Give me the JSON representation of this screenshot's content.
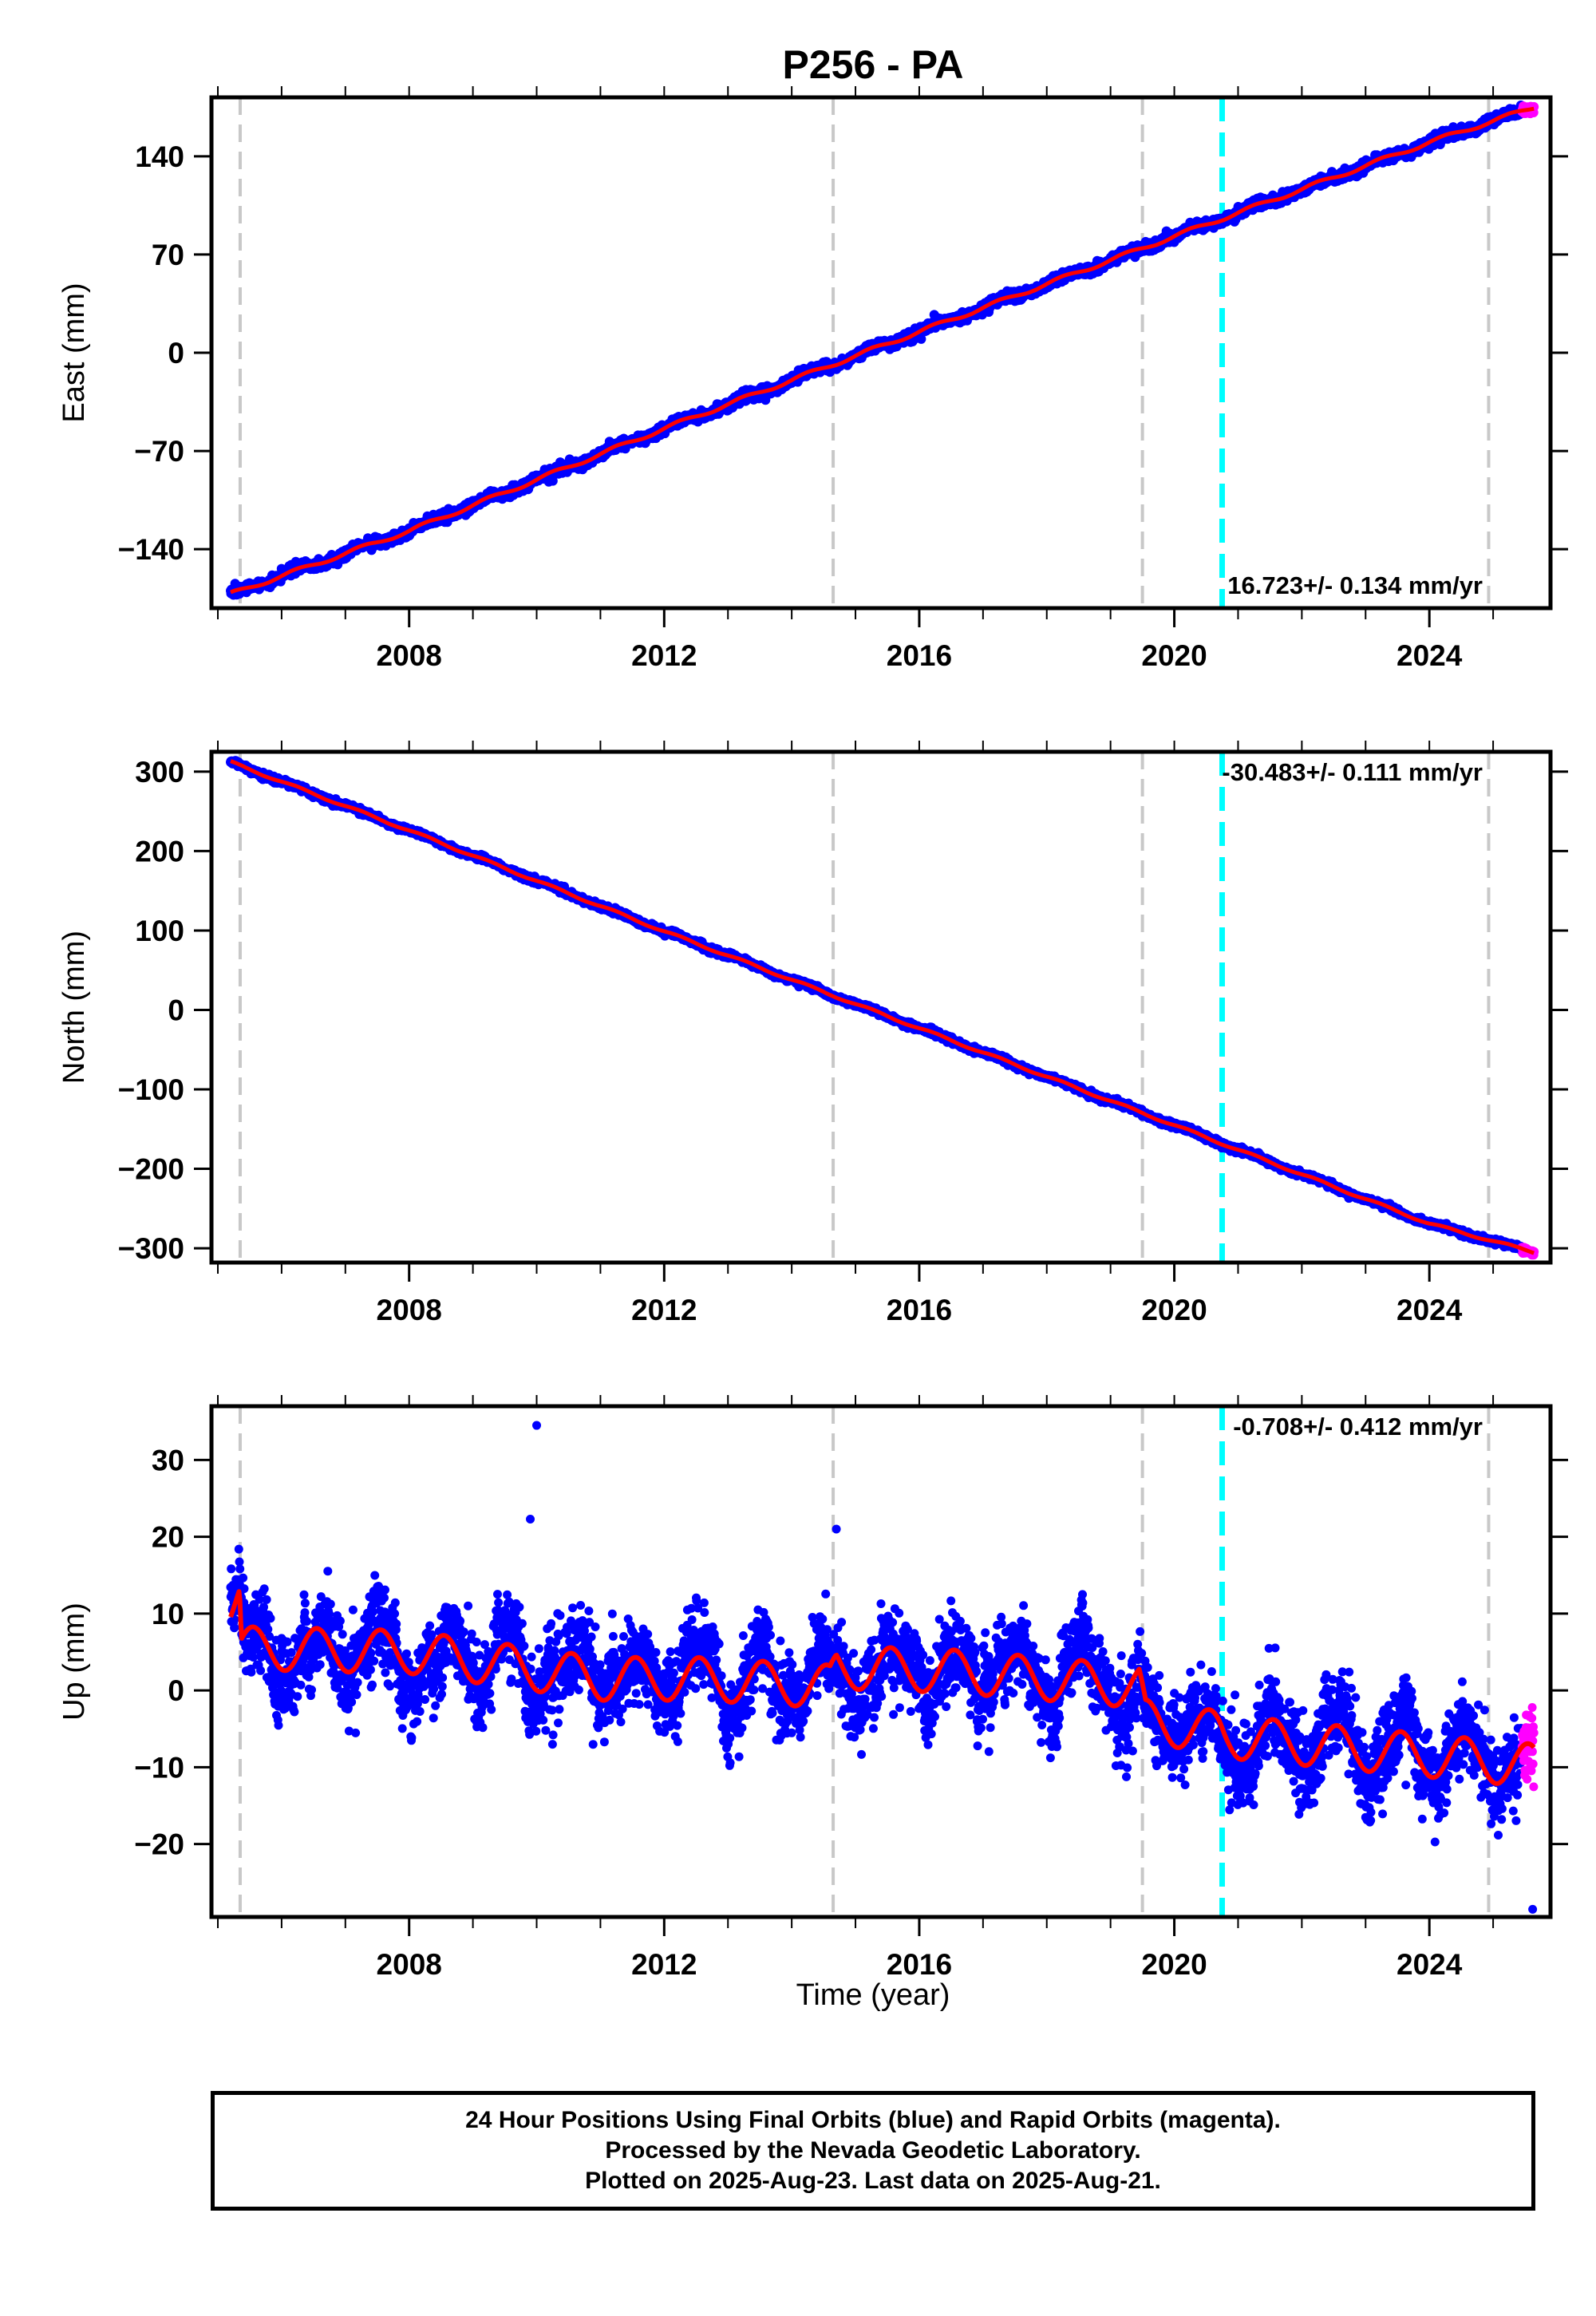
{
  "title": "P256 - PA",
  "x_axis_label": "Time (year)",
  "caption": [
    "24 Hour Positions Using Final Orbits (blue) and Rapid Orbits (magenta).",
    "Processed by the Nevada Geodetic Laboratory.",
    "Plotted on 2025-Aug-23. Last data on 2025-Aug-21."
  ],
  "colors": {
    "final_orbits": "#0000ff",
    "rapid_orbits": "#ff00ff",
    "model_fit": "#ff0000",
    "equipment_change": "#c8c8c8",
    "earthquake": "#00ffff"
  },
  "chart_data": [
    {
      "type": "scatter",
      "panel": "east",
      "ylabel": "East (mm)",
      "xlim": [
        2004.9,
        2025.9
      ],
      "ylim": [
        -182,
        182
      ],
      "xticks": [
        2008,
        2012,
        2016,
        2020,
        2024
      ],
      "yticks": [
        -140,
        -70,
        0,
        70,
        140
      ],
      "rate_label": "16.723+/- 0.134 mm/yr",
      "rate_mm_per_yr": 16.723,
      "rate_sigma": 0.134,
      "data_start": 2005.2,
      "data_end": 2025.64,
      "rapid_start": 2025.45,
      "offset_at": 2005.35,
      "vertical_lines_grey": [
        2005.35,
        2014.65,
        2019.5,
        2024.93
      ],
      "vertical_lines_cyan": [
        2020.75
      ],
      "series": [
        {
          "values_mm": [
            [
              2005.2,
              -172
            ],
            [
              2008,
              -127
            ],
            [
              2012,
              -54
            ],
            [
              2016,
              15
            ],
            [
              2020,
              83
            ],
            [
              2024,
              150
            ],
            [
              2025.64,
              175
            ]
          ]
        }
      ]
    },
    {
      "type": "scatter",
      "panel": "north",
      "ylabel": "North (mm)",
      "xlim": [
        2004.9,
        2025.9
      ],
      "ylim": [
        -318,
        325
      ],
      "xticks": [
        2008,
        2012,
        2016,
        2020,
        2024
      ],
      "yticks": [
        -300,
        -200,
        -100,
        0,
        100,
        200,
        300
      ],
      "rate_label": "-30.483+/- 0.111 mm/yr",
      "rate_mm_per_yr": -30.483,
      "rate_sigma": 0.111,
      "data_start": 2005.2,
      "data_end": 2025.64,
      "rapid_start": 2025.45,
      "vertical_lines_grey": [
        2005.35,
        2014.65,
        2019.5,
        2024.93
      ],
      "vertical_lines_cyan": [
        2020.75
      ],
      "series": [
        {
          "values_mm": [
            [
              2005.2,
              312
            ],
            [
              2008,
              226
            ],
            [
              2012,
              99
            ],
            [
              2016,
              -23
            ],
            [
              2020,
              -145
            ],
            [
              2024,
              -269
            ],
            [
              2025.64,
              -305
            ]
          ]
        }
      ]
    },
    {
      "type": "scatter",
      "panel": "up",
      "ylabel": "Up (mm)",
      "xlim": [
        2004.9,
        2025.9
      ],
      "ylim": [
        -29.5,
        37
      ],
      "xticks": [
        2008,
        2012,
        2016,
        2020,
        2024
      ],
      "yticks": [
        -20,
        -10,
        0,
        10,
        20,
        30
      ],
      "rate_label": "-0.708+/- 0.412 mm/yr",
      "rate_mm_per_yr": -0.708,
      "rate_sigma": 0.412,
      "data_start": 2005.2,
      "data_end": 2025.64,
      "rapid_start": 2025.45,
      "seasonal_amplitude_mm": 2.8,
      "noise_sigma_mm": 3.3,
      "vertical_lines_grey": [
        2005.35,
        2014.65,
        2019.5,
        2024.93
      ],
      "vertical_lines_cyan": [
        2020.75
      ],
      "outliers": [
        [
          2010.0,
          34.5
        ],
        [
          2009.9,
          22.3
        ],
        [
          2025.62,
          -28.5
        ],
        [
          2014.7,
          21.0
        ]
      ],
      "model_trend_mm": [
        [
          2005.2,
          11.2
        ],
        [
          2005.34,
          12.4
        ],
        [
          2005.37,
          5.5
        ],
        [
          2008,
          5.0
        ],
        [
          2011,
          1.5
        ],
        [
          2012.5,
          1.5
        ],
        [
          2014.6,
          0.5
        ],
        [
          2014.7,
          3.0
        ],
        [
          2016.5,
          2.5
        ],
        [
          2019.45,
          0.5
        ],
        [
          2019.55,
          -4.0
        ],
        [
          2020.7,
          -5.5
        ],
        [
          2020.8,
          -6.0
        ],
        [
          2025.64,
          -9.8
        ]
      ]
    }
  ]
}
